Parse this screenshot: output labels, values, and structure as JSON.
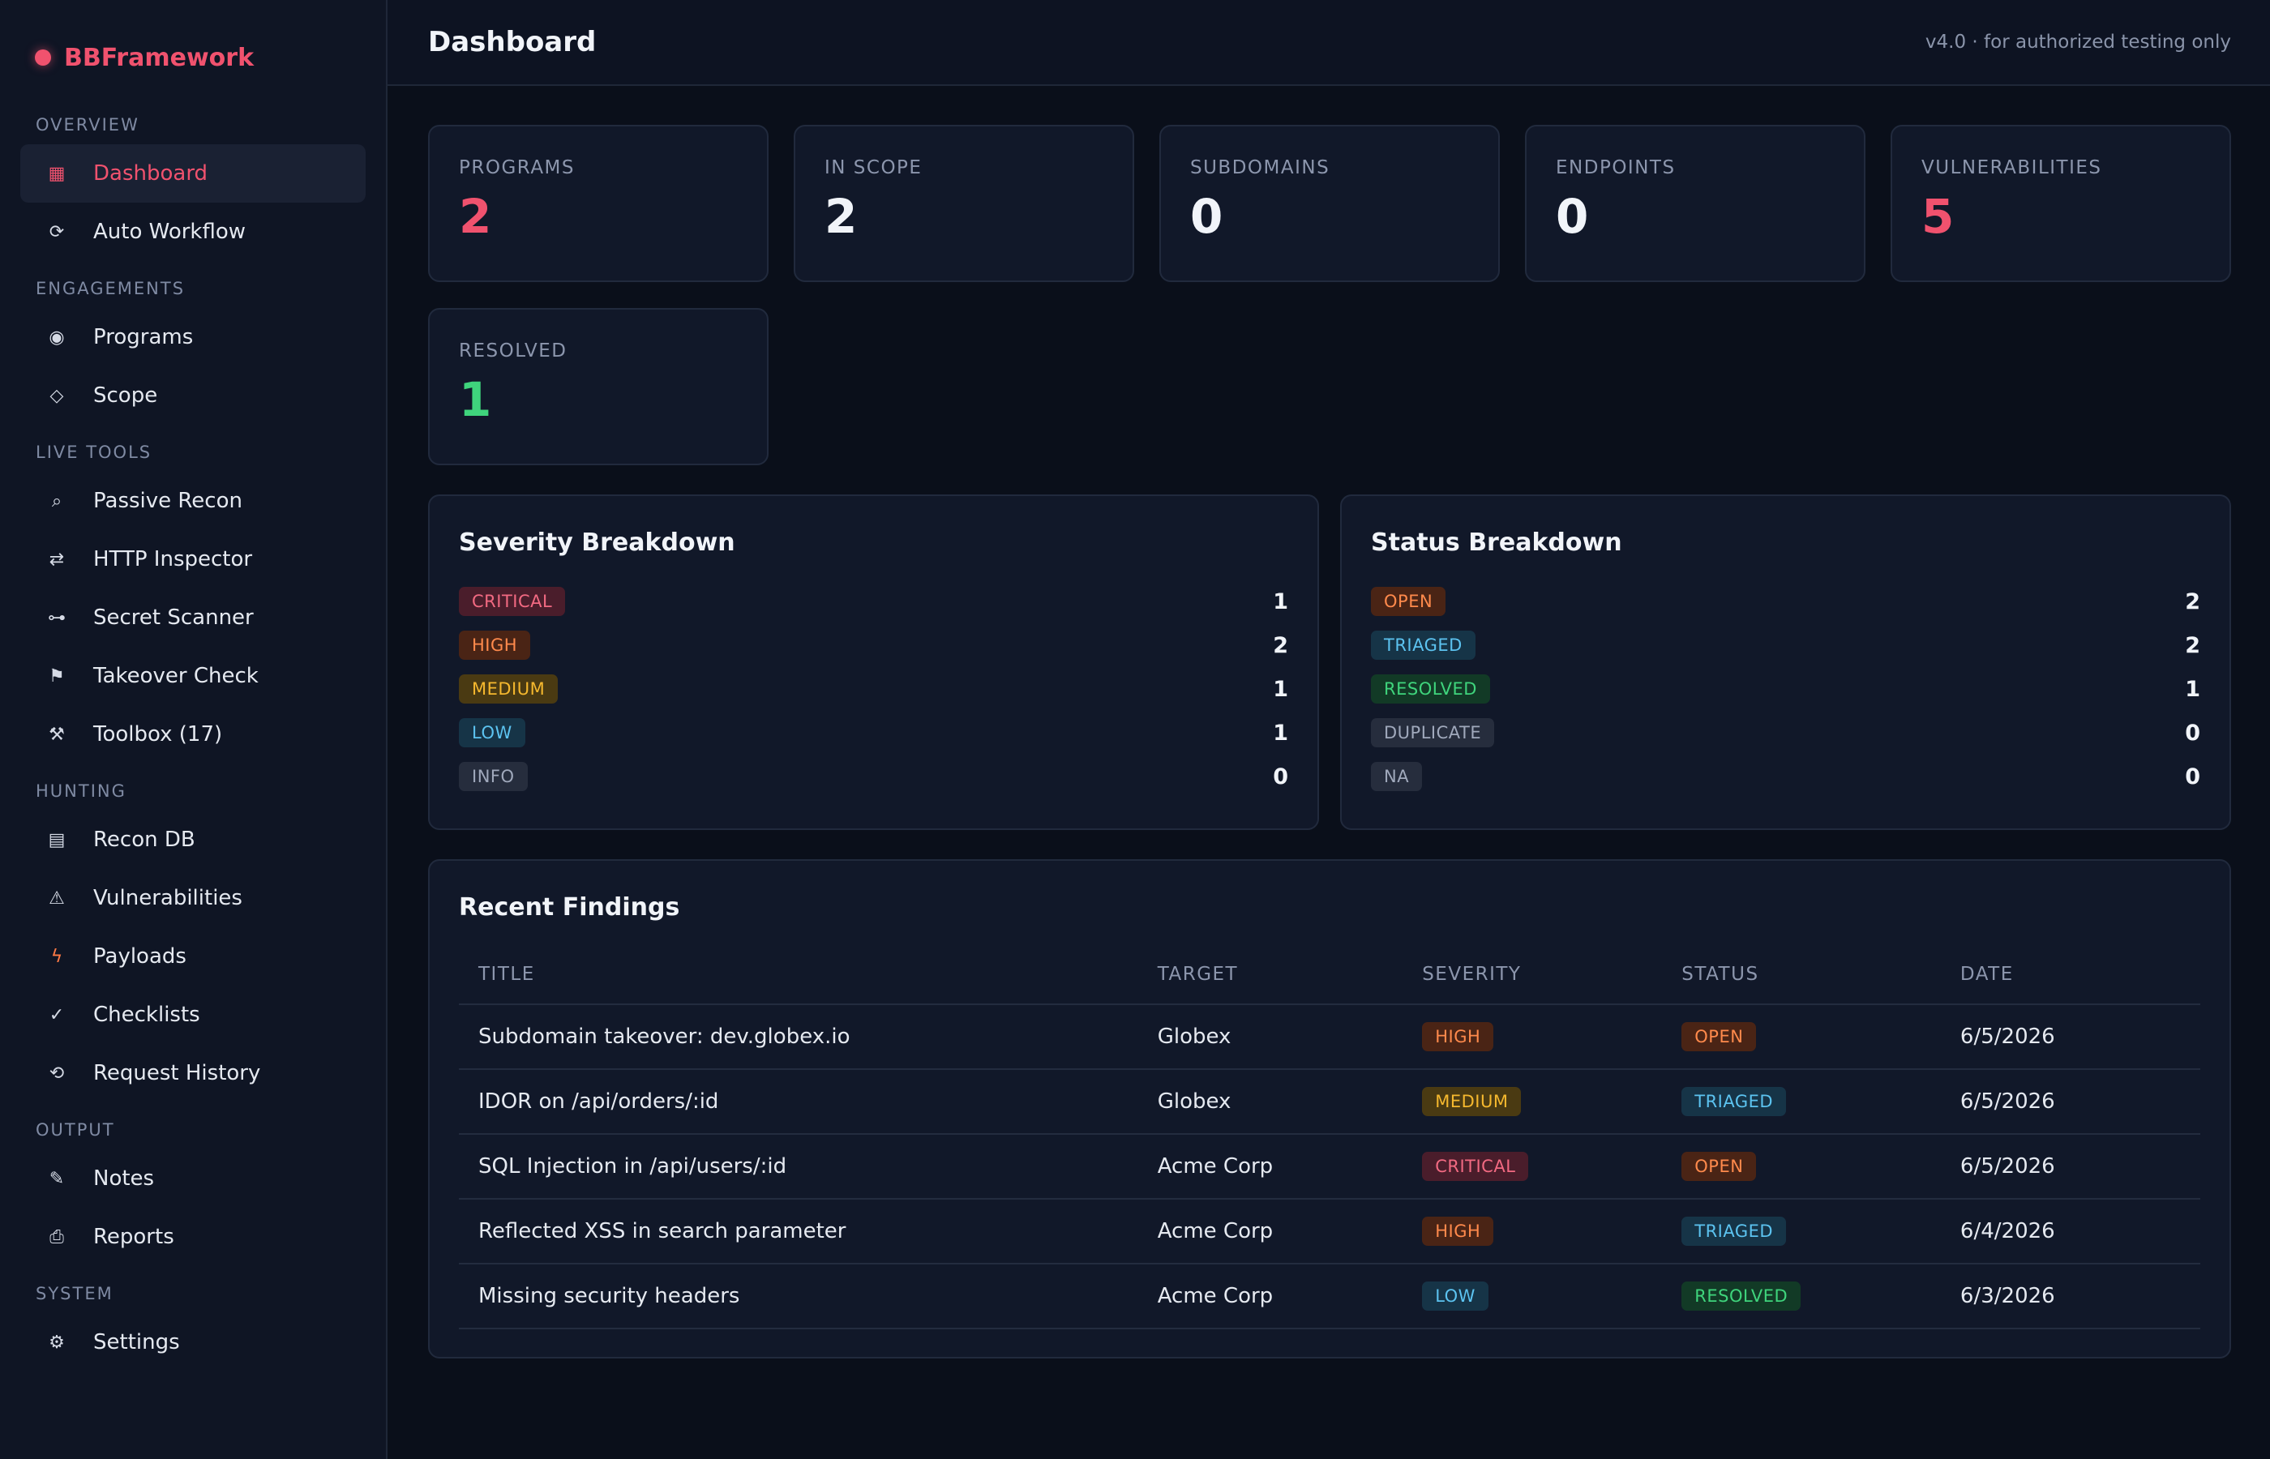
{
  "brand": {
    "name": "BBFramework",
    "accent": "#f0526e"
  },
  "sidebar": {
    "sections": [
      {
        "title": "OVERVIEW",
        "items": [
          {
            "label": "Dashboard",
            "icon": "grid-icon",
            "glyph": "▦",
            "active": true
          },
          {
            "label": "Auto Workflow",
            "icon": "refresh-icon",
            "glyph": "⟳"
          }
        ]
      },
      {
        "title": "ENGAGEMENTS",
        "items": [
          {
            "label": "Programs",
            "icon": "target-icon",
            "glyph": "◉"
          },
          {
            "label": "Scope",
            "icon": "diamond-icon",
            "glyph": "◇"
          }
        ]
      },
      {
        "title": "LIVE TOOLS",
        "items": [
          {
            "label": "Passive Recon",
            "icon": "search-icon",
            "glyph": "⌕"
          },
          {
            "label": "HTTP Inspector",
            "icon": "swap-icon",
            "glyph": "⇄"
          },
          {
            "label": "Secret Scanner",
            "icon": "key-icon",
            "glyph": "⊶"
          },
          {
            "label": "Takeover Check",
            "icon": "flag-icon",
            "glyph": "⚑"
          },
          {
            "label": "Toolbox (17)",
            "icon": "tools-icon",
            "glyph": "⚒"
          }
        ]
      },
      {
        "title": "HUNTING",
        "items": [
          {
            "label": "Recon DB",
            "icon": "database-icon",
            "glyph": "▤"
          },
          {
            "label": "Vulnerabilities",
            "icon": "warning-icon",
            "glyph": "⚠"
          },
          {
            "label": "Payloads",
            "icon": "bolt-icon",
            "glyph": "ϟ"
          },
          {
            "label": "Checklists",
            "icon": "check-icon",
            "glyph": "✓"
          },
          {
            "label": "Request History",
            "icon": "history-icon",
            "glyph": "⟲"
          }
        ]
      },
      {
        "title": "OUTPUT",
        "items": [
          {
            "label": "Notes",
            "icon": "pen-icon",
            "glyph": "✎"
          },
          {
            "label": "Reports",
            "icon": "report-icon",
            "glyph": "⎙"
          }
        ]
      },
      {
        "title": "SYSTEM",
        "items": [
          {
            "label": "Settings",
            "icon": "gear-icon",
            "glyph": "⚙"
          }
        ]
      }
    ]
  },
  "header": {
    "title": "Dashboard",
    "version": "v4.0 · for authorized testing only"
  },
  "stats": [
    {
      "label": "PROGRAMS",
      "value": "2",
      "color": "#f0526e"
    },
    {
      "label": "IN SCOPE",
      "value": "2",
      "color": "#f1f4f9"
    },
    {
      "label": "SUBDOMAINS",
      "value": "0",
      "color": "#f1f4f9"
    },
    {
      "label": "ENDPOINTS",
      "value": "0",
      "color": "#f1f4f9"
    },
    {
      "label": "VULNERABILITIES",
      "value": "5",
      "color": "#f0526e"
    },
    {
      "label": "RESOLVED",
      "value": "1",
      "color": "#3fd47c"
    }
  ],
  "severity": {
    "title": "Severity Breakdown",
    "rows": [
      {
        "label": "CRITICAL",
        "count": "1",
        "cls": "b-critical"
      },
      {
        "label": "HIGH",
        "count": "2",
        "cls": "b-high"
      },
      {
        "label": "MEDIUM",
        "count": "1",
        "cls": "b-medium"
      },
      {
        "label": "LOW",
        "count": "1",
        "cls": "b-low"
      },
      {
        "label": "INFO",
        "count": "0",
        "cls": "b-info"
      }
    ]
  },
  "status": {
    "title": "Status Breakdown",
    "rows": [
      {
        "label": "OPEN",
        "count": "2",
        "cls": "b-open"
      },
      {
        "label": "TRIAGED",
        "count": "2",
        "cls": "b-triaged"
      },
      {
        "label": "RESOLVED",
        "count": "1",
        "cls": "b-resolved"
      },
      {
        "label": "DUPLICATE",
        "count": "0",
        "cls": "b-duplicate"
      },
      {
        "label": "NA",
        "count": "0",
        "cls": "b-na"
      }
    ]
  },
  "findings": {
    "title": "Recent Findings",
    "columns": [
      "TITLE",
      "TARGET",
      "SEVERITY",
      "STATUS",
      "DATE"
    ],
    "rows": [
      {
        "title": "Subdomain takeover: dev.globex.io",
        "target": "Globex",
        "severity": "HIGH",
        "sev_cls": "b-high",
        "status": "OPEN",
        "status_cls": "b-open",
        "date": "6/5/2026"
      },
      {
        "title": "IDOR on /api/orders/:id",
        "target": "Globex",
        "severity": "MEDIUM",
        "sev_cls": "b-medium",
        "status": "TRIAGED",
        "status_cls": "b-triaged",
        "date": "6/5/2026"
      },
      {
        "title": "SQL Injection in /api/users/:id",
        "target": "Acme Corp",
        "severity": "CRITICAL",
        "sev_cls": "b-critical",
        "status": "OPEN",
        "status_cls": "b-open",
        "date": "6/5/2026"
      },
      {
        "title": "Reflected XSS in search parameter",
        "target": "Acme Corp",
        "severity": "HIGH",
        "sev_cls": "b-high",
        "status": "TRIAGED",
        "status_cls": "b-triaged",
        "date": "6/4/2026"
      },
      {
        "title": "Missing security headers",
        "target": "Acme Corp",
        "severity": "LOW",
        "sev_cls": "b-low",
        "status": "RESOLVED",
        "status_cls": "b-resolved",
        "date": "6/3/2026"
      }
    ]
  }
}
